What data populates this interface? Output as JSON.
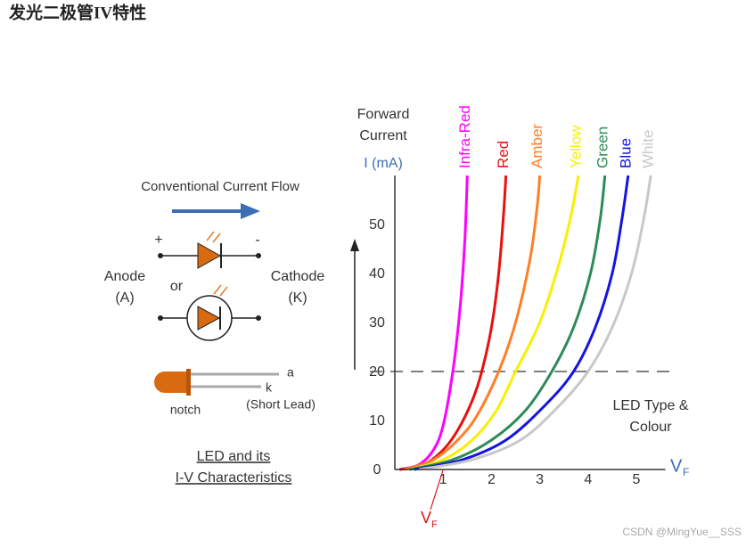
{
  "page": {
    "title": "发光二极管IV特性",
    "watermark": "CSDN @MingYue__SSS"
  },
  "diagram": {
    "flow_label": "Conventional Current Flow",
    "plus": "+",
    "minus": "-",
    "anode": "Anode",
    "anode_abbr": "(A)",
    "or": "or",
    "cathode": "Cathode",
    "cathode_abbr": "(K)",
    "lead_a": "a",
    "lead_k": "k",
    "notch": "notch",
    "short_lead": "(Short Lead)",
    "caption": [
      "LED and its",
      "I-V Characteristics"
    ]
  },
  "chart_data": {
    "type": "line",
    "y_label": [
      "Forward",
      "Current"
    ],
    "y_unit": "I (mA)",
    "x_label": {
      "text": "V",
      "subscript": "F"
    },
    "vf_annotation": {
      "text": "V",
      "subscript": "F"
    },
    "legend_title": [
      "LED Type &",
      "Colour"
    ],
    "xlim": [
      0,
      5.6
    ],
    "ylim": [
      0,
      60
    ],
    "xticks": [
      1,
      2,
      3,
      4,
      5
    ],
    "yticks": [
      0,
      10,
      20,
      30,
      40,
      50
    ],
    "hline": 20,
    "series": [
      {
        "name": "Infra-Red",
        "color": "#ff00ff",
        "x": [
          0.1,
          0.5,
          0.8,
          1.0,
          1.2,
          1.35,
          1.45,
          1.5
        ],
        "values": [
          0,
          1,
          4,
          9,
          20,
          33,
          47,
          60
        ]
      },
      {
        "name": "Red",
        "color": "#e81010",
        "x": [
          0.1,
          0.6,
          1.0,
          1.3,
          1.6,
          1.8,
          2.0,
          2.15,
          2.25,
          2.3
        ],
        "values": [
          0,
          1,
          4,
          8,
          14,
          20,
          29,
          40,
          52,
          60
        ]
      },
      {
        "name": "Amber",
        "color": "#ff7f27",
        "x": [
          0.2,
          0.8,
          1.3,
          1.7,
          2.15,
          2.5,
          2.8,
          2.95,
          3.0
        ],
        "values": [
          0,
          2,
          6,
          11,
          20,
          30,
          43,
          54,
          60
        ]
      },
      {
        "name": "Yellow",
        "color": "#f8f000",
        "x": [
          0.3,
          1.0,
          1.6,
          2.1,
          2.5,
          3.0,
          3.4,
          3.65,
          3.8
        ],
        "values": [
          0,
          2,
          6,
          12,
          20,
          30,
          42,
          52,
          60
        ]
      },
      {
        "name": "Green",
        "color": "#2e8b57",
        "x": [
          0.3,
          1.2,
          2.0,
          2.7,
          3.25,
          3.7,
          4.05,
          4.25,
          4.35
        ],
        "values": [
          0,
          2,
          6,
          12,
          20,
          29,
          40,
          51,
          60
        ]
      },
      {
        "name": "Blue",
        "color": "#1414e0",
        "x": [
          0.4,
          1.4,
          2.3,
          3.1,
          3.7,
          4.15,
          4.5,
          4.7,
          4.83
        ],
        "values": [
          0,
          2,
          6,
          13,
          20,
          29,
          40,
          51,
          60
        ]
      },
      {
        "name": "White",
        "color": "#c8c8c8",
        "x": [
          0.5,
          1.6,
          2.6,
          3.4,
          4.0,
          4.5,
          4.9,
          5.15,
          5.3
        ],
        "values": [
          0,
          2,
          6,
          13,
          20,
          29,
          40,
          51,
          60
        ]
      }
    ]
  }
}
